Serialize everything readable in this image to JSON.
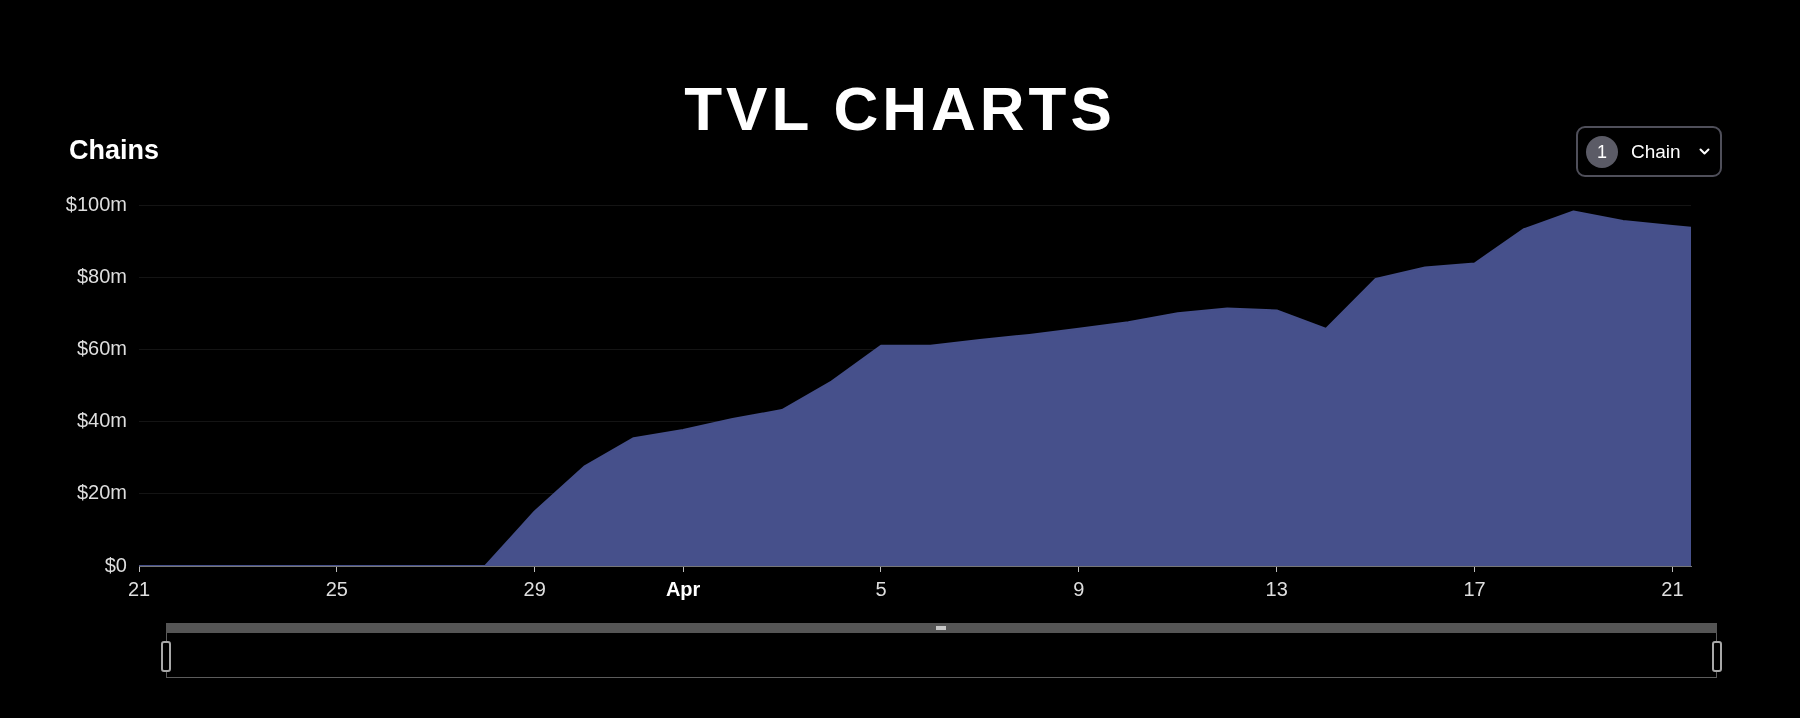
{
  "chart_data": {
    "type": "area",
    "title": "TVL CHARTS",
    "subtitle": "Chains",
    "annotations": [
      "1",
      "Chain"
    ],
    "x": [
      "--03-21",
      "--03-22",
      "--03-23",
      "--03-24",
      "--03-25",
      "--03-26",
      "--03-27",
      "--03-28",
      "--03-29",
      "--03-30",
      "--03-31",
      "--04-01",
      "--04-02",
      "--04-03",
      "--04-04",
      "--04-05",
      "--04-06",
      "--04-07",
      "--04-08",
      "--04-09",
      "--04-10",
      "--04-11",
      "--04-12",
      "--04-13",
      "--04-14",
      "--04-15",
      "--04-16",
      "--04-17",
      "--04-18",
      "--04-19",
      "--04-20",
      "--04-21",
      "--04-21T09:00"
    ],
    "values": [
      0,
      0,
      0,
      0,
      0,
      0,
      0,
      0,
      15.1,
      27.5,
      35.4,
      37.7,
      40.7,
      43.2,
      51.1,
      61,
      61,
      62.6,
      64,
      65.7,
      67.5,
      70,
      71.3,
      70.8,
      65.7,
      79.5,
      82.7,
      83.8,
      93.3,
      98.2,
      95.6,
      94.2,
      93.7
    ],
    "color": "#46508b",
    "xlim": [
      "--03-21",
      "--04-21T09:00"
    ],
    "xticks": [
      {
        "value": "--03-21",
        "label": "21"
      },
      {
        "value": "--03-25",
        "label": "25"
      },
      {
        "value": "--03-29",
        "label": "29"
      },
      {
        "value": "--04-01",
        "label": "Apr"
      },
      {
        "value": "--04-05",
        "label": "5"
      },
      {
        "value": "--04-09",
        "label": "9"
      },
      {
        "value": "--04-13",
        "label": "13"
      },
      {
        "value": "--04-17",
        "label": "17"
      },
      {
        "value": "--04-21",
        "label": "21"
      }
    ],
    "ylim": [
      0,
      100
    ],
    "yticks": [
      {
        "value": 0,
        "label": "$0"
      },
      {
        "value": 20,
        "label": "$20m"
      },
      {
        "value": 40,
        "label": "$40m"
      },
      {
        "value": 60,
        "label": "$60m"
      },
      {
        "value": 80,
        "label": "$80m"
      },
      {
        "value": 100,
        "label": "$100m"
      }
    ],
    "grid": "y"
  }
}
